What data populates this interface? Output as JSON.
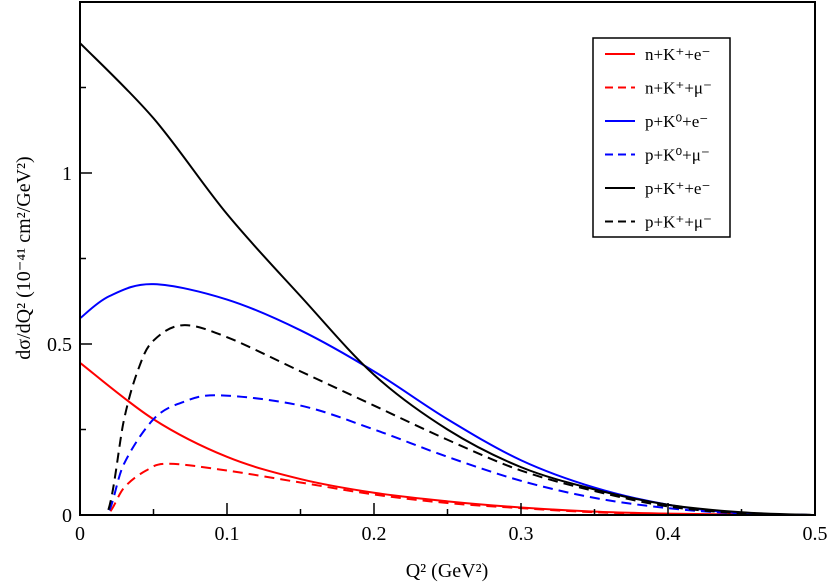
{
  "chart_data": {
    "type": "line",
    "title": "",
    "xlabel": "Q²  (GeV²)",
    "ylabel": "dσ/dQ² (10⁻⁴¹ cm²/GeV²)",
    "xlim": [
      0,
      0.5
    ],
    "ylim": [
      0,
      1.5
    ],
    "xticks": [
      "0",
      "0.1",
      "0.2",
      "0.3",
      "0.4",
      "0.5"
    ],
    "yticks": [
      "0",
      "0.5",
      "1"
    ],
    "grid": false,
    "legend_placement": "top-right",
    "series": [
      {
        "name": "n+K⁺+e⁻",
        "color": "#ff0000",
        "dash": false,
        "x": [
          0,
          0.05,
          0.1,
          0.15,
          0.2,
          0.25,
          0.3,
          0.35,
          0.4,
          0.45,
          0.5
        ],
        "y": [
          0.445,
          0.28,
          0.17,
          0.105,
          0.065,
          0.04,
          0.022,
          0.01,
          0.004,
          0.001,
          0
        ]
      },
      {
        "name": "n+K⁺+μ⁻",
        "color": "#ff0000",
        "dash": true,
        "x": [
          0,
          0.018,
          0.03,
          0.045,
          0.06,
          0.1,
          0.15,
          0.2,
          0.25,
          0.3,
          0.35,
          0.4,
          0.45,
          0.5
        ],
        "y": [
          0,
          0,
          0.08,
          0.13,
          0.15,
          0.13,
          0.095,
          0.06,
          0.035,
          0.02,
          0.008,
          0.003,
          0.001,
          0
        ]
      },
      {
        "name": "p+K⁰+e⁻",
        "color": "#0000ff",
        "dash": false,
        "x": [
          0,
          0.02,
          0.05,
          0.1,
          0.15,
          0.2,
          0.25,
          0.3,
          0.35,
          0.4,
          0.45,
          0.5
        ],
        "y": [
          0.575,
          0.64,
          0.675,
          0.63,
          0.54,
          0.42,
          0.28,
          0.16,
          0.08,
          0.03,
          0.005,
          0
        ]
      },
      {
        "name": "p+K⁰+μ⁻",
        "color": "#0000ff",
        "dash": true,
        "x": [
          0,
          0.018,
          0.03,
          0.05,
          0.07,
          0.095,
          0.15,
          0.2,
          0.25,
          0.3,
          0.35,
          0.4,
          0.45,
          0.5
        ],
        "y": [
          0,
          0,
          0.15,
          0.28,
          0.33,
          0.35,
          0.32,
          0.25,
          0.17,
          0.1,
          0.05,
          0.02,
          0.004,
          0
        ]
      },
      {
        "name": "p+K⁺+e⁻",
        "color": "#000000",
        "dash": false,
        "x": [
          0,
          0.05,
          0.1,
          0.15,
          0.2,
          0.25,
          0.3,
          0.35,
          0.4,
          0.45,
          0.5
        ],
        "y": [
          1.38,
          1.16,
          0.88,
          0.64,
          0.41,
          0.25,
          0.14,
          0.075,
          0.03,
          0.008,
          0
        ]
      },
      {
        "name": "p+K⁺+μ⁻",
        "color": "#000000",
        "dash": true,
        "x": [
          0,
          0.018,
          0.03,
          0.04,
          0.05,
          0.07,
          0.1,
          0.15,
          0.2,
          0.25,
          0.3,
          0.35,
          0.4,
          0.45,
          0.5
        ],
        "y": [
          0,
          0,
          0.28,
          0.43,
          0.51,
          0.555,
          0.52,
          0.42,
          0.32,
          0.22,
          0.13,
          0.07,
          0.025,
          0.005,
          0
        ]
      }
    ]
  }
}
